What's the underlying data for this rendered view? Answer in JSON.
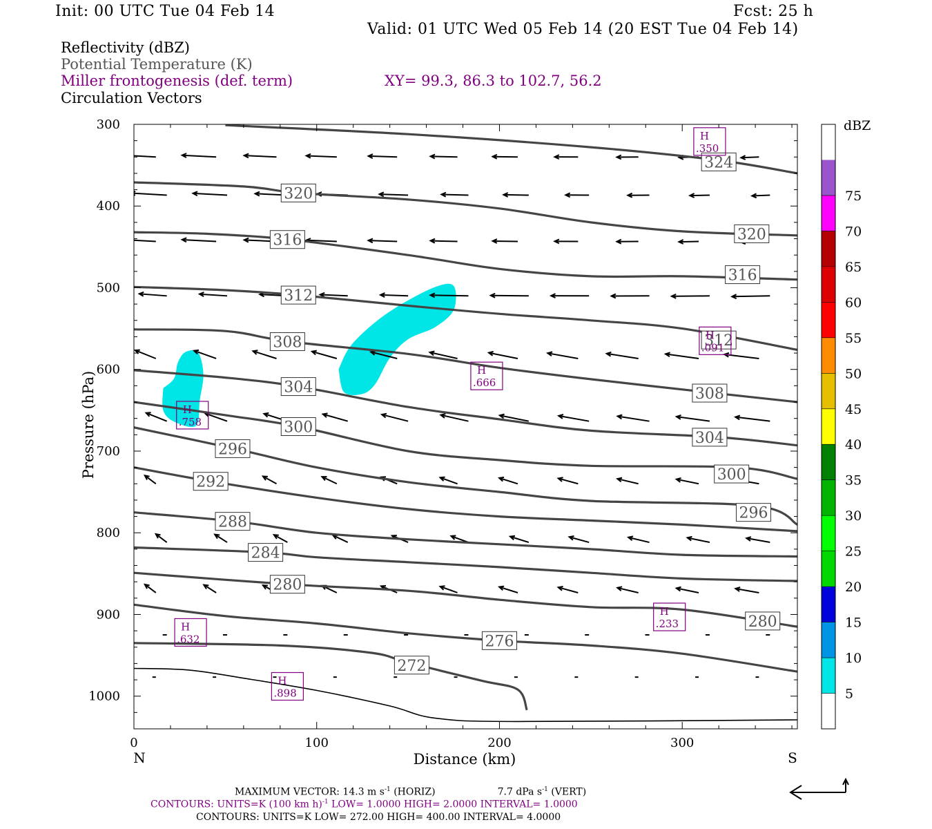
{
  "header": {
    "init": "Init: 00 UTC Tue 04 Feb 14",
    "fcst": "Fcst:   25 h",
    "valid": "Valid: 01 UTC Wed 05 Feb 14 (20 EST Tue 04 Feb 14)"
  },
  "legend": {
    "line1": "Reflectivity (dBZ)",
    "line2": "Potential Temperature (K)",
    "line3": "Miller frontogenesis (def. term)",
    "xy": "XY=  99.3, 86.3 to 102.7, 56.2",
    "line4": "Circulation Vectors"
  },
  "colors": {
    "purple": "#800080",
    "contour": "#454545",
    "reflectivity": "#00e5e5",
    "theta_label": "#555555"
  },
  "chart_data": {
    "type": "cross-section",
    "xlabel": "Distance (km)",
    "ylabel": "Pressure (hPa)",
    "xlim": [
      0,
      363
    ],
    "ylim": [
      1040,
      300
    ],
    "x_ticks": [
      "0",
      "100",
      "200",
      "300"
    ],
    "y_ticks": [
      "300",
      "400",
      "500",
      "600",
      "700",
      "800",
      "900",
      "1000"
    ],
    "x_end_labels": {
      "left": "N",
      "right": "S"
    },
    "theta_contours": [
      {
        "label": "324",
        "points": [
          [
            50,
            301
          ],
          [
            150,
            312
          ],
          [
            250,
            328
          ],
          [
            320,
            344
          ],
          [
            363,
            360
          ]
        ],
        "label_at": [
          320,
          346
        ]
      },
      {
        "label": "320",
        "points": [
          [
            0,
            371
          ],
          [
            60,
            376
          ],
          [
            90,
            384
          ],
          [
            150,
            392
          ],
          [
            200,
            403
          ],
          [
            250,
            420
          ],
          [
            300,
            431
          ],
          [
            363,
            436
          ]
        ],
        "label_at": [
          90,
          384
        ],
        "label_at_2": [
          338,
          434
        ]
      },
      {
        "label": "316",
        "points": [
          [
            0,
            432
          ],
          [
            40,
            434
          ],
          [
            85,
            441
          ],
          [
            150,
            460
          ],
          [
            200,
            477
          ],
          [
            250,
            486
          ],
          [
            300,
            486
          ],
          [
            363,
            490
          ]
        ],
        "label_at": [
          84,
          441
        ],
        "label_at_2": [
          333,
          484
        ]
      },
      {
        "label": "312",
        "points": [
          [
            0,
            499
          ],
          [
            50,
            503
          ],
          [
            90,
            509
          ],
          [
            150,
            522
          ],
          [
            200,
            532
          ],
          [
            250,
            540
          ],
          [
            300,
            550
          ],
          [
            363,
            576
          ]
        ],
        "label_at": [
          90,
          509
        ],
        "label_at_2": [
          320,
          564
        ]
      },
      {
        "label": "308",
        "points": [
          [
            0,
            551
          ],
          [
            50,
            553
          ],
          [
            85,
            566
          ],
          [
            150,
            581
          ],
          [
            200,
            598
          ],
          [
            250,
            612
          ],
          [
            310,
            627
          ],
          [
            363,
            640
          ]
        ],
        "label_at": [
          84,
          566
        ],
        "label_at_2": [
          315,
          629
        ]
      },
      {
        "label": "304",
        "points": [
          [
            0,
            601
          ],
          [
            50,
            610
          ],
          [
            90,
            621
          ],
          [
            150,
            646
          ],
          [
            200,
            661
          ],
          [
            250,
            675
          ],
          [
            320,
            683
          ],
          [
            363,
            693
          ]
        ],
        "label_at": [
          90,
          621
        ],
        "label_at_2": [
          315,
          683
        ]
      },
      {
        "label": "300",
        "points": [
          [
            0,
            640
          ],
          [
            50,
            656
          ],
          [
            90,
            670
          ],
          [
            150,
            700
          ],
          [
            200,
            711
          ],
          [
            250,
            718
          ],
          [
            330,
            720
          ],
          [
            363,
            734
          ]
        ],
        "label_at": [
          90,
          670
        ],
        "label_at_2": [
          327,
          728
        ]
      },
      {
        "label": "296",
        "points": [
          [
            0,
            671
          ],
          [
            55,
            697
          ],
          [
            100,
            720
          ],
          [
            150,
            738
          ],
          [
            200,
            750
          ],
          [
            250,
            761
          ],
          [
            340,
            767
          ],
          [
            363,
            790
          ]
        ],
        "label_at": [
          54,
          697
        ],
        "label_at_2": [
          339,
          775
        ]
      },
      {
        "label": "292",
        "points": [
          [
            0,
            720
          ],
          [
            42,
            737
          ],
          [
            100,
            757
          ],
          [
            150,
            771
          ],
          [
            200,
            780
          ],
          [
            250,
            785
          ],
          [
            300,
            790
          ],
          [
            363,
            798
          ]
        ],
        "label_at": [
          42,
          737
        ]
      },
      {
        "label": "288",
        "points": [
          [
            0,
            775
          ],
          [
            55,
            786
          ],
          [
            100,
            800
          ],
          [
            150,
            808
          ],
          [
            200,
            814
          ],
          [
            250,
            820
          ],
          [
            300,
            827
          ],
          [
            363,
            829
          ]
        ],
        "label_at": [
          54,
          786
        ]
      },
      {
        "label": "284",
        "points": [
          [
            0,
            818
          ],
          [
            72,
            824
          ],
          [
            100,
            830
          ],
          [
            150,
            836
          ],
          [
            200,
            842
          ],
          [
            250,
            849
          ],
          [
            300,
            856
          ],
          [
            363,
            859
          ]
        ],
        "label_at": [
          72,
          824
        ]
      },
      {
        "label": "280",
        "points": [
          [
            0,
            849
          ],
          [
            84,
            863
          ],
          [
            150,
            871
          ],
          [
            200,
            882
          ],
          [
            250,
            891
          ],
          [
            300,
            894
          ],
          [
            363,
            915
          ]
        ],
        "label_at": [
          84,
          863
        ],
        "label_at_2": [
          344,
          908
        ]
      },
      {
        "label": "276",
        "points": [
          [
            0,
            888
          ],
          [
            50,
            902
          ],
          [
            100,
            911
          ],
          [
            150,
            923
          ],
          [
            200,
            932
          ],
          [
            250,
            938
          ],
          [
            300,
            948
          ],
          [
            363,
            970
          ]
        ],
        "label_at": [
          200,
          932
        ]
      },
      {
        "label": "272",
        "points": [
          [
            0,
            935
          ],
          [
            80,
            938
          ],
          [
            130,
            947
          ],
          [
            150,
            959
          ],
          [
            190,
            981
          ],
          [
            210,
            992
          ],
          [
            215,
            1017
          ]
        ],
        "label_at": [
          152,
          962
        ]
      }
    ],
    "terrain": [
      [
        0,
        966
      ],
      [
        30,
        968
      ],
      [
        60,
        978
      ],
      [
        100,
        993
      ],
      [
        140,
        1012
      ],
      [
        165,
        1027
      ],
      [
        210,
        1031
      ],
      [
        363,
        1029
      ]
    ],
    "reflectivity_areas": [
      {
        "dbz": "5-10",
        "polygon": [
          [
            16,
            623
          ],
          [
            22,
            611
          ],
          [
            24,
            592
          ],
          [
            28,
            579
          ],
          [
            35,
            579
          ],
          [
            38,
            606
          ],
          [
            36,
            638
          ],
          [
            34,
            669
          ],
          [
            22,
            664
          ],
          [
            16,
            650
          ]
        ]
      },
      {
        "dbz": "5-10",
        "polygon": [
          [
            112,
            600
          ],
          [
            118,
            573
          ],
          [
            130,
            546
          ],
          [
            145,
            522
          ],
          [
            165,
            499
          ],
          [
            175,
            498
          ],
          [
            175,
            527
          ],
          [
            165,
            548
          ],
          [
            150,
            563
          ],
          [
            140,
            586
          ],
          [
            132,
            618
          ],
          [
            125,
            630
          ],
          [
            115,
            628
          ]
        ]
      }
    ],
    "frontogenesis_maxima": [
      {
        "label": "H",
        "value": ".350",
        "at": [
          315,
          321
        ]
      },
      {
        "label": "H",
        "value": ".091",
        "at": [
          318,
          565
        ]
      },
      {
        "label": "H",
        "value": ".666",
        "at": [
          193,
          608
        ]
      },
      {
        "label": "H",
        "value": ".758",
        "at": [
          32,
          656
        ]
      },
      {
        "label": "H",
        "value": ".632",
        "at": [
          31,
          922
        ]
      },
      {
        "label": "H",
        "value": ".233",
        "at": [
          293,
          903
        ]
      },
      {
        "label": "H",
        "value": ".898",
        "at": [
          84,
          988
        ]
      }
    ],
    "colorbar": {
      "title": "dBZ",
      "levels": [
        "5",
        "10",
        "15",
        "20",
        "25",
        "30",
        "35",
        "40",
        "45",
        "50",
        "55",
        "60",
        "65",
        "70",
        "75"
      ],
      "colors": [
        "#ffffff",
        "#00e5e5",
        "#0094e5",
        "#0000d8",
        "#00d800",
        "#00ff00",
        "#00b400",
        "#008000",
        "#ffff00",
        "#e6bf00",
        "#ff8c00",
        "#ff0000",
        "#dd0000",
        "#b40000",
        "#ff00ff",
        "#9a55cc",
        "#ffffff"
      ]
    },
    "vectors_note": "circulation vectors (horizontal/vertical)"
  },
  "footer": {
    "max_vector_a": "MAXIMUM VECTOR:  14.3 m s",
    "max_vector_a_sup": "-1",
    "max_vector_b": " (HORIZ)",
    "max_vector_c": "7.7 dPa s",
    "max_vector_c_sup": "-1",
    "max_vector_d": " (VERT)",
    "contours1_a": "CONTOURS:  UNITS=K (100 km h)",
    "contours1_sup": "-1",
    "contours1_b": "  LOW=   1.0000       HIGH=  2.0000       INTERVAL=    1.0000",
    "contours2": "CONTOURS:  UNITS=K  LOW=  272.00      HIGH=  400.00       INTERVAL=     4.0000"
  }
}
